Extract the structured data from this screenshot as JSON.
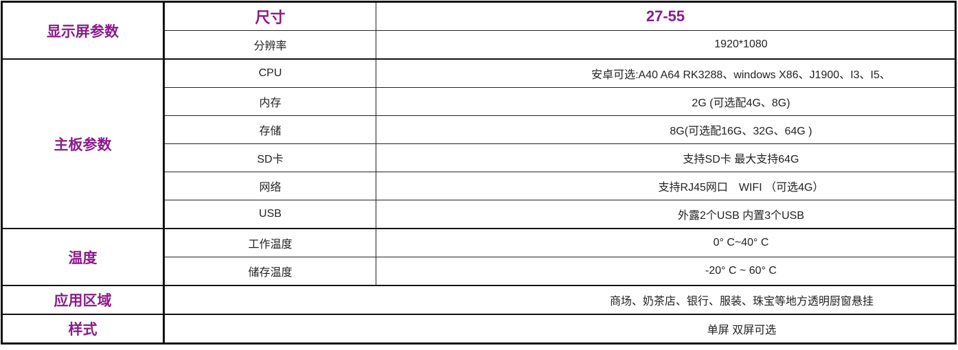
{
  "accent_color": "#8b1a8b",
  "groups": [
    {
      "category": "显示屏参数",
      "rows": [
        {
          "label": "尺寸",
          "value": "27-55"
        },
        {
          "label": "分辨率",
          "value": "1920*1080"
        }
      ]
    },
    {
      "category": "主板参数",
      "rows": [
        {
          "label": "CPU",
          "value": "安卓可选:A40 A64 RK3288、windows X86、J1900、I3、I5、"
        },
        {
          "label": "内存",
          "value": "2G (可选配4G、8G)"
        },
        {
          "label": "存储",
          "value": "8G(可选配16G、32G、64G )"
        },
        {
          "label": "SD卡",
          "value": "支持SD卡 最大支持64G"
        },
        {
          "label": "网络",
          "value": "支持RJ45网口　WIFI （可选4G）"
        },
        {
          "label": "USB",
          "value": "外露2个USB  内置3个USB"
        }
      ]
    },
    {
      "category": "温度",
      "rows": [
        {
          "label": "工作温度",
          "value": "0°  C~40°  C"
        },
        {
          "label": "储存温度",
          "value": "-20°  C ~ 60°  C"
        }
      ]
    },
    {
      "category": "应用区域",
      "value": "商场、奶茶店、银行、服装、珠宝等地方透明厨窗悬挂"
    },
    {
      "category": "样式",
      "value": "单屏 双屏可选"
    }
  ]
}
